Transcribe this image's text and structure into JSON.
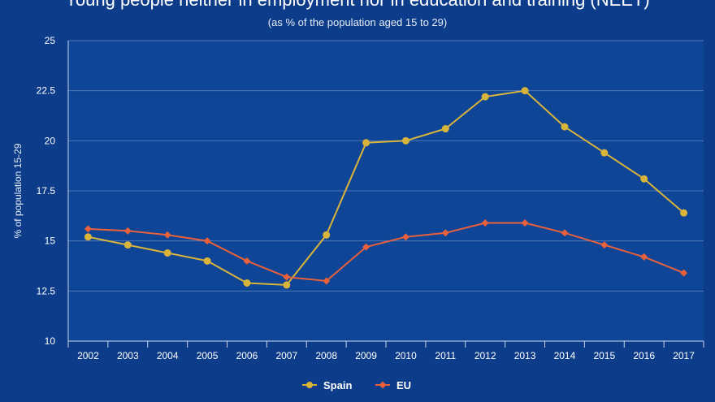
{
  "chart_data": {
    "type": "line",
    "title": "Young people neither in employment nor in education and training (NEET)",
    "subtitle": "(as % of the population aged 15 to 29)",
    "xlabel": "",
    "ylabel": "% of population 15-29",
    "ylim": [
      10,
      25
    ],
    "yticks": [
      10,
      12.5,
      15,
      17.5,
      20,
      22.5,
      25
    ],
    "ytick_labels": [
      "10",
      "12.5",
      "15",
      "17.5",
      "20",
      "22.5",
      "25"
    ],
    "grid": true,
    "legend_position": "bottom-center",
    "categories": [
      "2002",
      "2003",
      "2004",
      "2005",
      "2006",
      "2007",
      "2008",
      "2009",
      "2010",
      "2011",
      "2012",
      "2013",
      "2014",
      "2015",
      "2016",
      "2017"
    ],
    "series": [
      {
        "name": "Spain",
        "color": "#d9b43a",
        "marker": "circle",
        "values": [
          15.2,
          14.8,
          14.4,
          14.0,
          12.9,
          12.8,
          15.3,
          19.9,
          20.0,
          20.6,
          22.2,
          22.5,
          20.7,
          19.4,
          18.1,
          16.4
        ]
      },
      {
        "name": "EU",
        "color": "#e8603c",
        "marker": "diamond",
        "values": [
          15.6,
          15.5,
          15.3,
          15.0,
          14.0,
          13.2,
          13.0,
          14.7,
          15.2,
          15.4,
          15.9,
          15.9,
          15.4,
          14.8,
          14.2,
          13.4
        ]
      }
    ]
  }
}
